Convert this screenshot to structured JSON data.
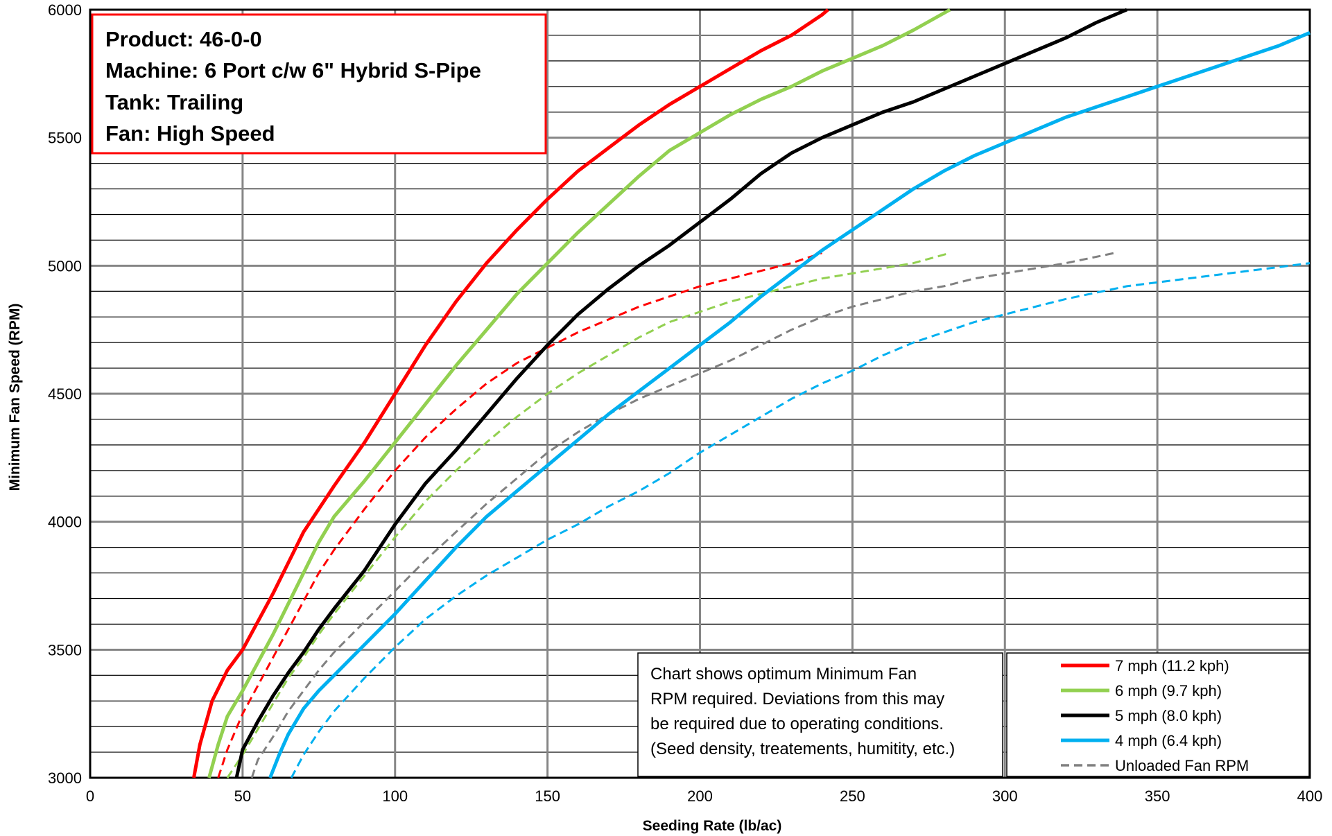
{
  "chart_data": {
    "type": "line",
    "xlabel": "Seeding Rate (lb/ac)",
    "ylabel": "Minimum Fan Speed (RPM)",
    "xlim": [
      0,
      400
    ],
    "ylim": [
      3000,
      6000
    ],
    "x_ticks": [
      0,
      50,
      100,
      150,
      200,
      250,
      300,
      350,
      400
    ],
    "y_ticks": [
      3000,
      3500,
      4000,
      4500,
      5000,
      5500,
      6000
    ],
    "grid": true,
    "legend_placement": "bottom-right",
    "info_box": [
      "Product:  46-0-0",
      "Machine: 6 Port c/w 6\" Hybrid S-Pipe",
      "Tank:  Trailing",
      "Fan:  High Speed"
    ],
    "note": [
      "Chart shows optimum Minimum Fan",
      "RPM required.  Deviations from this may",
      "be required due to operating conditions.",
      "(Seed density, treatements, humitity, etc.)"
    ],
    "series": [
      {
        "name": "7 mph (11.2 kph)",
        "color": "#ff0000",
        "style": "solid",
        "x": [
          34,
          36,
          40,
          45,
          50,
          55,
          60,
          65,
          70,
          75,
          80,
          90,
          100,
          110,
          120,
          130,
          140,
          150,
          160,
          170,
          180,
          190,
          200,
          210,
          220,
          230,
          240,
          242
        ],
        "y": [
          3000,
          3130,
          3300,
          3420,
          3500,
          3610,
          3720,
          3840,
          3960,
          4050,
          4140,
          4310,
          4500,
          4690,
          4860,
          5010,
          5140,
          5260,
          5370,
          5460,
          5550,
          5630,
          5700,
          5770,
          5840,
          5900,
          5980,
          6000
        ]
      },
      {
        "name": "6 mph (9.7 kph)",
        "color": "#92d050",
        "style": "solid",
        "x": [
          39,
          42,
          45,
          50,
          55,
          60,
          65,
          70,
          75,
          80,
          90,
          100,
          110,
          120,
          130,
          140,
          150,
          160,
          170,
          180,
          190,
          200,
          210,
          220,
          230,
          240,
          250,
          260,
          270,
          282
        ],
        "y": [
          3000,
          3130,
          3240,
          3340,
          3450,
          3560,
          3680,
          3800,
          3920,
          4020,
          4160,
          4310,
          4460,
          4610,
          4750,
          4890,
          5010,
          5130,
          5240,
          5350,
          5450,
          5520,
          5590,
          5650,
          5700,
          5760,
          5810,
          5860,
          5920,
          6000
        ]
      },
      {
        "name": "5 mph (8.0 kph)",
        "color": "#000000",
        "style": "solid",
        "x": [
          48,
          50,
          55,
          60,
          65,
          70,
          75,
          80,
          90,
          100,
          110,
          120,
          130,
          140,
          150,
          160,
          170,
          180,
          190,
          200,
          210,
          220,
          230,
          240,
          250,
          260,
          270,
          280,
          290,
          300,
          310,
          320,
          330,
          340
        ],
        "y": [
          3000,
          3110,
          3220,
          3320,
          3410,
          3490,
          3580,
          3660,
          3810,
          3990,
          4150,
          4280,
          4420,
          4560,
          4690,
          4810,
          4910,
          5000,
          5080,
          5170,
          5260,
          5360,
          5440,
          5500,
          5550,
          5600,
          5640,
          5690,
          5740,
          5790,
          5840,
          5890,
          5950,
          6000
        ]
      },
      {
        "name": "4 mph (6.4 kph)",
        "color": "#00b0f0",
        "style": "solid",
        "x": [
          59,
          62,
          65,
          70,
          75,
          80,
          90,
          100,
          110,
          120,
          130,
          140,
          150,
          160,
          170,
          180,
          190,
          200,
          210,
          220,
          230,
          240,
          250,
          260,
          270,
          280,
          290,
          300,
          310,
          320,
          330,
          340,
          350,
          360,
          370,
          380,
          390,
          400
        ],
        "y": [
          3000,
          3090,
          3170,
          3270,
          3340,
          3400,
          3520,
          3640,
          3770,
          3900,
          4020,
          4120,
          4220,
          4320,
          4420,
          4510,
          4600,
          4690,
          4780,
          4880,
          4970,
          5060,
          5140,
          5220,
          5300,
          5370,
          5430,
          5480,
          5530,
          5580,
          5620,
          5660,
          5700,
          5740,
          5780,
          5820,
          5860,
          5910
        ]
      },
      {
        "name": "",
        "color": "#ff0000",
        "style": "dashed",
        "x": [
          42,
          45,
          50,
          55,
          60,
          65,
          70,
          75,
          80,
          85,
          90,
          100,
          110,
          120,
          130,
          140,
          150,
          160,
          170,
          180,
          190,
          200,
          210,
          220,
          230,
          240
        ],
        "y": [
          3000,
          3110,
          3250,
          3360,
          3470,
          3580,
          3690,
          3800,
          3890,
          3970,
          4050,
          4200,
          4330,
          4440,
          4540,
          4620,
          4680,
          4740,
          4790,
          4840,
          4880,
          4920,
          4950,
          4980,
          5010,
          5050
        ]
      },
      {
        "name": "",
        "color": "#92d050",
        "style": "dashed",
        "x": [
          45,
          50,
          55,
          60,
          65,
          70,
          75,
          80,
          90,
          100,
          110,
          120,
          130,
          140,
          150,
          160,
          170,
          180,
          190,
          200,
          210,
          220,
          230,
          240,
          250,
          260,
          270,
          282
        ],
        "y": [
          3000,
          3090,
          3190,
          3290,
          3390,
          3470,
          3560,
          3640,
          3790,
          3940,
          4080,
          4200,
          4310,
          4410,
          4500,
          4580,
          4650,
          4720,
          4780,
          4820,
          4860,
          4890,
          4920,
          4950,
          4970,
          4990,
          5010,
          5050
        ]
      },
      {
        "name": "",
        "color": "#00b0f0",
        "style": "dashed",
        "x": [
          66,
          70,
          75,
          80,
          90,
          100,
          110,
          120,
          130,
          140,
          150,
          160,
          170,
          180,
          190,
          200,
          210,
          220,
          230,
          240,
          250,
          260,
          270,
          280,
          290,
          300,
          320,
          340,
          360,
          380,
          400
        ],
        "y": [
          3000,
          3090,
          3180,
          3260,
          3390,
          3510,
          3620,
          3710,
          3790,
          3860,
          3930,
          3990,
          4060,
          4120,
          4190,
          4270,
          4340,
          4410,
          4480,
          4540,
          4590,
          4650,
          4700,
          4740,
          4780,
          4810,
          4870,
          4920,
          4950,
          4980,
          5010
        ]
      },
      {
        "name": "Unloaded Fan RPM",
        "color": "#808080",
        "style": "dashed",
        "x": [
          53,
          55,
          60,
          65,
          70,
          75,
          80,
          90,
          100,
          110,
          120,
          130,
          140,
          150,
          160,
          170,
          180,
          190,
          200,
          210,
          220,
          230,
          240,
          250,
          260,
          270,
          280,
          290,
          300,
          310,
          320,
          336
        ],
        "y": [
          3000,
          3070,
          3160,
          3260,
          3340,
          3420,
          3490,
          3610,
          3730,
          3850,
          3960,
          4070,
          4170,
          4270,
          4350,
          4420,
          4480,
          4530,
          4580,
          4630,
          4690,
          4750,
          4800,
          4840,
          4870,
          4900,
          4920,
          4950,
          4970,
          4990,
          5010,
          5050
        ]
      }
    ]
  }
}
